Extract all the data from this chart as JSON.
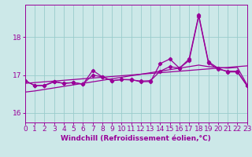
{
  "x": [
    0,
    1,
    2,
    3,
    4,
    5,
    6,
    7,
    8,
    9,
    10,
    11,
    12,
    13,
    14,
    15,
    16,
    17,
    18,
    19,
    20,
    21,
    22,
    23
  ],
  "line_smooth1": [
    16.78,
    16.8,
    16.82,
    16.84,
    16.86,
    16.88,
    16.9,
    16.92,
    16.94,
    16.96,
    16.98,
    17.0,
    17.02,
    17.04,
    17.06,
    17.08,
    17.1,
    17.12,
    17.14,
    17.16,
    17.18,
    17.2,
    17.22,
    17.24
  ],
  "line_smooth2": [
    16.55,
    16.58,
    16.62,
    16.66,
    16.7,
    16.74,
    16.78,
    16.82,
    16.86,
    16.9,
    16.94,
    16.98,
    17.02,
    17.06,
    17.1,
    17.14,
    17.18,
    17.22,
    17.26,
    17.22,
    17.2,
    17.18,
    17.2,
    16.75
  ],
  "line_data1": [
    16.85,
    16.72,
    16.72,
    16.82,
    16.78,
    16.8,
    16.76,
    17.12,
    16.95,
    16.85,
    16.88,
    16.88,
    16.82,
    16.83,
    17.3,
    17.42,
    17.18,
    17.42,
    18.58,
    17.35,
    17.18,
    17.08,
    17.08,
    16.72
  ],
  "line_data2": [
    16.85,
    16.72,
    16.73,
    16.83,
    16.78,
    16.8,
    16.76,
    17.0,
    16.95,
    16.85,
    16.88,
    16.87,
    16.84,
    16.85,
    17.1,
    17.22,
    17.18,
    17.38,
    18.55,
    17.32,
    17.15,
    17.1,
    17.1,
    16.72
  ],
  "color": "#990099",
  "bg_color": "#cce8e8",
  "xlabel": "Windchill (Refroidissement éolien,°C)",
  "yticks": [
    16,
    17,
    18
  ],
  "xticks": [
    0,
    1,
    2,
    3,
    4,
    5,
    6,
    7,
    8,
    9,
    10,
    11,
    12,
    13,
    14,
    15,
    16,
    17,
    18,
    19,
    20,
    21,
    22,
    23
  ],
  "xlim": [
    0,
    23
  ],
  "ylim": [
    15.75,
    18.85
  ],
  "grid_color": "#99cccc",
  "marker": "D",
  "markersize": 2.2,
  "linewidth": 0.9,
  "xlabel_fontsize": 6.5,
  "tick_fontsize": 6.5
}
